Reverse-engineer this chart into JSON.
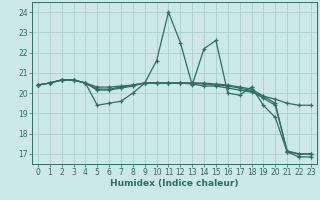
{
  "background_color": "#cce8e8",
  "grid_color": "#aacfcf",
  "line_color": "#2e6e65",
  "xlabel": "Humidex (Indice chaleur)",
  "xlim": [
    -0.5,
    23.5
  ],
  "ylim": [
    16.5,
    24.5
  ],
  "yticks": [
    17,
    18,
    19,
    20,
    21,
    22,
    23,
    24
  ],
  "xticks": [
    0,
    1,
    2,
    3,
    4,
    5,
    6,
    7,
    8,
    9,
    10,
    11,
    12,
    13,
    14,
    15,
    16,
    17,
    18,
    19,
    20,
    21,
    22,
    23
  ],
  "lines": [
    {
      "x": [
        0,
        1,
        2,
        3,
        4,
        5,
        6,
        7,
        8,
        9,
        10,
        11,
        12,
        13,
        14,
        15,
        16,
        17,
        18,
        19,
        20,
        21,
        22,
        23
      ],
      "y": [
        20.4,
        20.5,
        20.65,
        20.65,
        20.5,
        19.4,
        19.5,
        19.6,
        20.0,
        20.5,
        21.6,
        24.0,
        22.5,
        20.4,
        22.2,
        22.6,
        20.0,
        19.9,
        20.3,
        19.4,
        18.8,
        17.1,
        16.85,
        16.85
      ]
    },
    {
      "x": [
        0,
        1,
        2,
        3,
        4,
        5,
        6,
        7,
        8,
        9,
        10,
        11,
        12,
        13,
        14,
        15,
        16,
        17,
        18,
        19,
        20,
        21,
        22,
        23
      ],
      "y": [
        20.4,
        20.5,
        20.65,
        20.65,
        20.5,
        20.15,
        20.15,
        20.25,
        20.35,
        20.5,
        20.5,
        20.5,
        20.5,
        20.45,
        20.35,
        20.35,
        20.25,
        20.15,
        20.05,
        19.85,
        19.7,
        19.5,
        19.4,
        19.4
      ]
    },
    {
      "x": [
        0,
        1,
        2,
        3,
        4,
        5,
        6,
        7,
        8,
        9,
        10,
        11,
        12,
        13,
        14,
        15,
        16,
        17,
        18,
        19,
        20,
        21,
        22,
        23
      ],
      "y": [
        20.4,
        20.5,
        20.65,
        20.65,
        20.5,
        20.2,
        20.2,
        20.3,
        20.4,
        20.5,
        20.5,
        20.5,
        20.5,
        20.5,
        20.5,
        20.45,
        20.4,
        20.3,
        20.2,
        19.85,
        19.5,
        17.1,
        17.0,
        17.0
      ]
    },
    {
      "x": [
        0,
        1,
        2,
        3,
        4,
        5,
        6,
        7,
        8,
        9,
        10,
        11,
        12,
        13,
        14,
        15,
        16,
        17,
        18,
        19,
        20,
        21,
        22,
        23
      ],
      "y": [
        20.4,
        20.5,
        20.65,
        20.65,
        20.5,
        20.3,
        20.3,
        20.35,
        20.4,
        20.5,
        20.5,
        20.5,
        20.5,
        20.5,
        20.45,
        20.4,
        20.35,
        20.25,
        20.1,
        19.75,
        19.4,
        17.15,
        17.0,
        17.0
      ]
    }
  ]
}
